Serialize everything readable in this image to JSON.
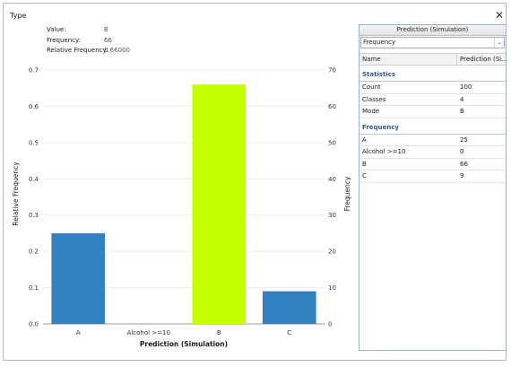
{
  "window": {
    "title": "Type"
  },
  "info": {
    "value_label": "Value:",
    "value": "B",
    "frequency_label": "Frequency:",
    "frequency": "66",
    "relfreq_label": "Relative Frequency:",
    "relfreq": "0.66000"
  },
  "chart_data": {
    "type": "bar",
    "categories": [
      "A",
      "Alcohol >=10",
      "B",
      "C"
    ],
    "values": [
      0.25,
      0.0,
      0.66,
      0.09
    ],
    "frequencies": [
      25,
      0,
      66,
      9
    ],
    "xlabel": "Prediction (Simulation)",
    "ylabel": "Relative Frequency",
    "y2label": "Frequency",
    "ylim": [
      0,
      0.7
    ],
    "y2lim": [
      0,
      70
    ],
    "yticks": [
      "0.0",
      "0.1",
      "0.2",
      "0.3",
      "0.4",
      "0.5",
      "0.6",
      "0.7"
    ],
    "y2ticks": [
      "0",
      "10",
      "20",
      "30",
      "40",
      "50",
      "60",
      "70"
    ],
    "selected_category": "B",
    "colors": {
      "default": "#3381c1",
      "selected": "#c6ff00"
    },
    "grid": true
  },
  "panel": {
    "title": "Prediction (Simulation)",
    "dropdown_value": "Frequency",
    "col_name": "Name",
    "col_pred": "Prediction (Si...",
    "statistics_header": "Statistics",
    "statistics": [
      {
        "name": "Count",
        "value": "100"
      },
      {
        "name": "Classes",
        "value": "4"
      },
      {
        "name": "Mode",
        "value": "B"
      }
    ],
    "frequency_header": "Frequency",
    "frequency_rows": [
      {
        "name": "A",
        "value": "25"
      },
      {
        "name": "Alcohol >=10",
        "value": "0"
      },
      {
        "name": "B",
        "value": "66"
      },
      {
        "name": "C",
        "value": "9"
      }
    ]
  }
}
